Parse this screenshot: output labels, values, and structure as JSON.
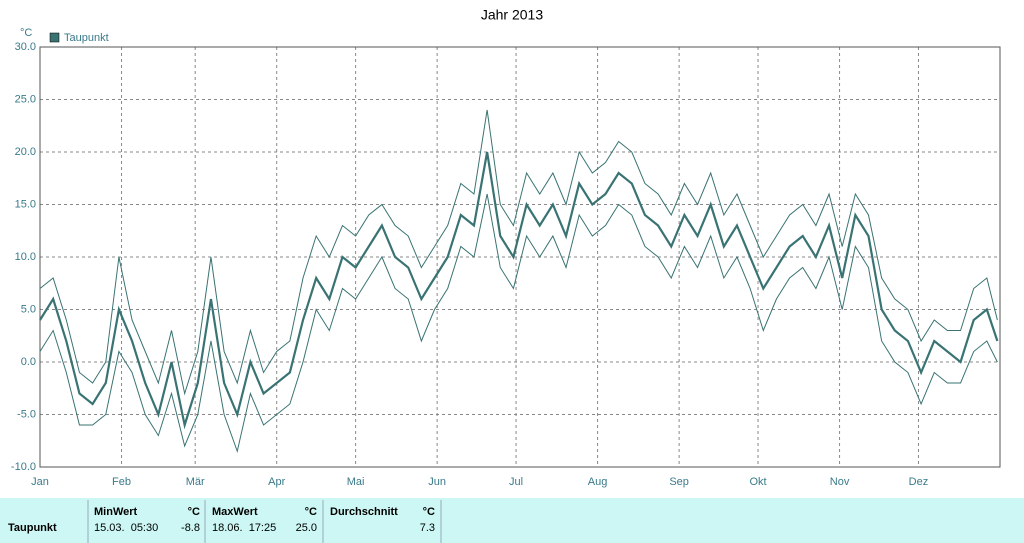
{
  "chart_data": {
    "type": "line",
    "title": "Jahr 2013",
    "y_unit": "°C",
    "x": [
      0,
      5,
      10,
      15,
      20,
      25,
      30,
      35,
      40,
      45,
      50,
      55,
      60,
      65,
      70,
      75,
      80,
      85,
      90,
      95,
      100,
      105,
      110,
      115,
      120,
      125,
      130,
      135,
      140,
      145,
      150,
      155,
      160,
      165,
      170,
      175,
      180,
      185,
      190,
      195,
      200,
      205,
      210,
      215,
      220,
      225,
      230,
      235,
      240,
      245,
      250,
      255,
      260,
      265,
      270,
      275,
      280,
      285,
      290,
      295,
      300,
      305,
      310,
      315,
      320,
      325,
      330,
      335,
      340,
      345,
      350,
      355,
      360,
      364
    ],
    "series": [
      {
        "name": "Taupunkt",
        "color": "#3a7373",
        "values": [
          4,
          6,
          2,
          -3,
          -4,
          -2,
          5,
          2,
          -2,
          -5,
          0,
          -6,
          -2,
          6,
          -2,
          -5,
          0,
          -3,
          -2,
          -1,
          4,
          8,
          6,
          10,
          9,
          11,
          13,
          10,
          9,
          6,
          8,
          10,
          14,
          13,
          20,
          12,
          10,
          15,
          13,
          15,
          12,
          17,
          15,
          16,
          18,
          17,
          14,
          13,
          11,
          14,
          12,
          15,
          11,
          13,
          10,
          7,
          9,
          11,
          12,
          10,
          13,
          8,
          14,
          12,
          5,
          3,
          2,
          -1,
          2,
          1,
          0,
          4,
          5,
          2
        ]
      },
      {
        "color": "#3a7373",
        "values": [
          7,
          8,
          4,
          -1,
          -2,
          0,
          10,
          4,
          1,
          -2,
          3,
          -3,
          1,
          10,
          1,
          -2,
          3,
          -1,
          1,
          2,
          8,
          12,
          10,
          13,
          12,
          14,
          15,
          13,
          12,
          9,
          11,
          13,
          17,
          16,
          24,
          15,
          13,
          18,
          16,
          18,
          15,
          20,
          18,
          19,
          21,
          20,
          17,
          16,
          14,
          17,
          15,
          18,
          14,
          16,
          13,
          10,
          12,
          14,
          15,
          13,
          16,
          11,
          16,
          14,
          8,
          6,
          5,
          2,
          4,
          3,
          3,
          7,
          8,
          4
        ]
      },
      {
        "color": "#3a7373",
        "values": [
          1,
          3,
          -1,
          -6,
          -6,
          -5,
          1,
          -1,
          -5,
          -7,
          -3,
          -8,
          -5,
          2,
          -5,
          -8.5,
          -3,
          -6,
          -5,
          -4,
          0,
          5,
          3,
          7,
          6,
          8,
          10,
          7,
          6,
          2,
          5,
          7,
          11,
          10,
          16,
          9,
          7,
          12,
          10,
          12,
          9,
          14,
          12,
          13,
          15,
          14,
          11,
          10,
          8,
          11,
          9,
          12,
          8,
          10,
          7,
          3,
          6,
          8,
          9,
          7,
          10,
          5,
          11,
          9,
          2,
          0,
          -1,
          -4,
          -1,
          -2,
          -2,
          1,
          2,
          0
        ]
      }
    ],
    "xlim": [
      0,
      365
    ],
    "xticks": [
      {
        "value": 0,
        "label": "Jan"
      },
      {
        "value": 31,
        "label": "Feb"
      },
      {
        "value": 59,
        "label": "Mär"
      },
      {
        "value": 90,
        "label": "Apr"
      },
      {
        "value": 120,
        "label": "Mai"
      },
      {
        "value": 151,
        "label": "Jun"
      },
      {
        "value": 181,
        "label": "Jul"
      },
      {
        "value": 212,
        "label": "Aug"
      },
      {
        "value": 243,
        "label": "Sep"
      },
      {
        "value": 273,
        "label": "Okt"
      },
      {
        "value": 304,
        "label": "Nov"
      },
      {
        "value": 334,
        "label": "Dez"
      }
    ],
    "ylim": [
      -10,
      30
    ],
    "yticks": [
      {
        "value": -10,
        "label": "-10.0"
      },
      {
        "value": -5,
        "label": "-5.0"
      },
      {
        "value": 0,
        "label": "0.0"
      },
      {
        "value": 5,
        "label": "5.0"
      },
      {
        "value": 10,
        "label": "10.0"
      },
      {
        "value": 15,
        "label": "15.0"
      },
      {
        "value": 20,
        "label": "20.0"
      },
      {
        "value": 25,
        "label": "25.0"
      },
      {
        "value": 30,
        "label": "30.0"
      }
    ],
    "grid": true
  },
  "table": {
    "headers": [
      "MinWert",
      "°C",
      "MaxWert",
      "°C",
      "Durchschnitt",
      "°C"
    ],
    "rows": [
      [
        "Taupunkt",
        "15.03.  05:30",
        "-8.8",
        "18.06.  17:25",
        "25.0",
        "7.3"
      ]
    ]
  }
}
